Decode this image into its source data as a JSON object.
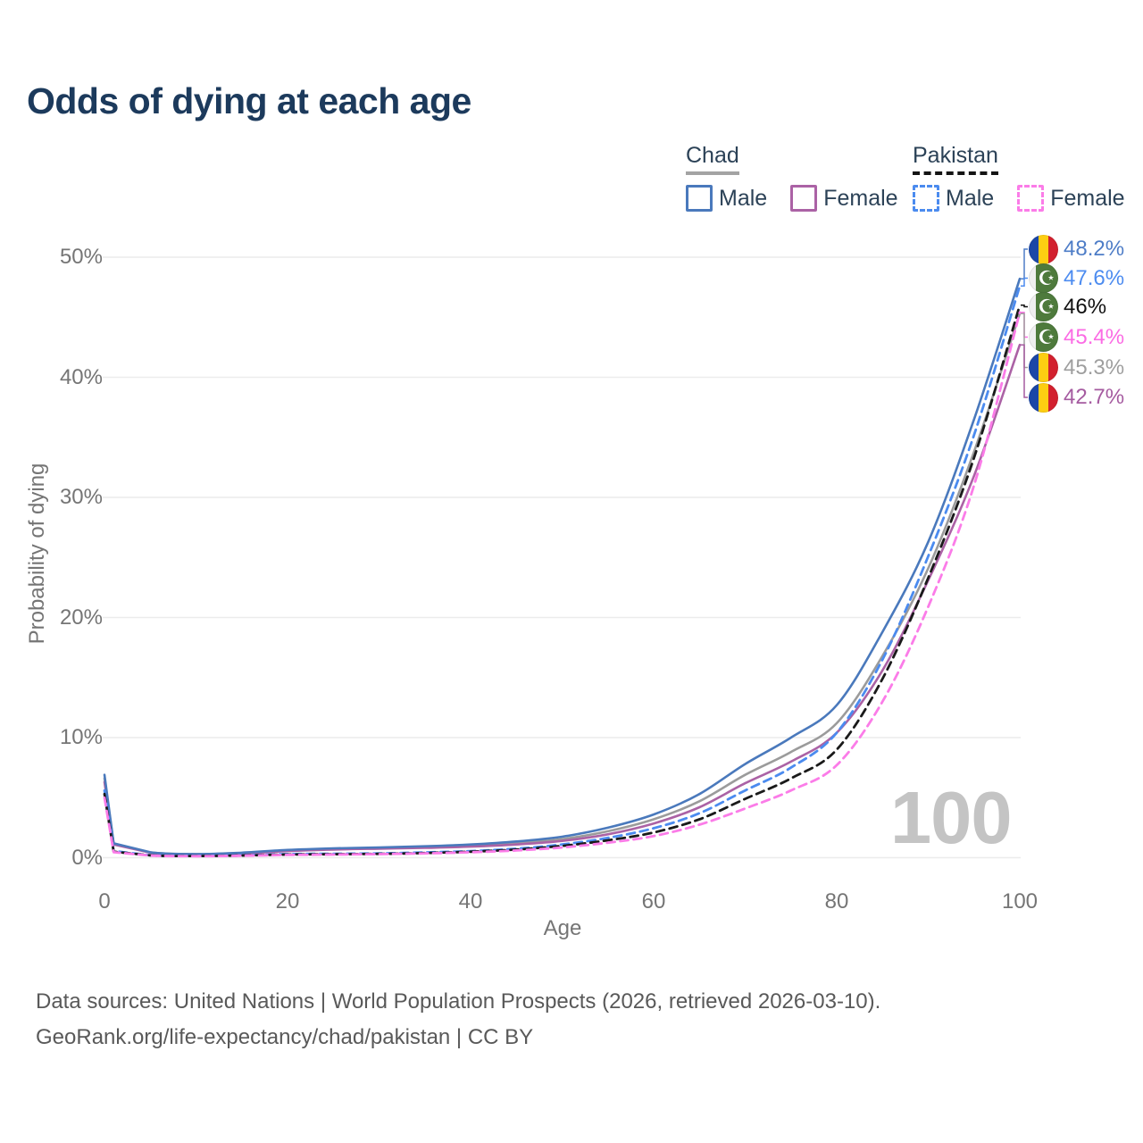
{
  "title": "Odds of dying at each age",
  "watermark": "100",
  "legend": {
    "chad": {
      "label": "Chad",
      "male": "Male",
      "female": "Female"
    },
    "pakistan": {
      "label": "Pakistan",
      "male": "Male",
      "female": "Female"
    }
  },
  "axes": {
    "y_title": "Probability of dying",
    "x_title": "Age",
    "y_tick_labels": [
      "0%",
      "10%",
      "20%",
      "30%",
      "40%",
      "50%"
    ],
    "y_tick_values": [
      0,
      10,
      20,
      30,
      40,
      50
    ],
    "x_tick_labels": [
      "0",
      "20",
      "40",
      "60",
      "80",
      "100"
    ],
    "x_tick_values": [
      0,
      20,
      40,
      60,
      80,
      100
    ]
  },
  "colors": {
    "title": "#1c3a5c",
    "axis_text": "#757575",
    "grid": "#ececec",
    "watermark": "#c4c4c4",
    "chad_male": "#4a79bc",
    "chad_female": "#ab62a5",
    "chad_total": "#9b9b9b",
    "pak_male": "#4b8bef",
    "pak_total": "#1a1a1a",
    "pak_female": "#fb7ce8"
  },
  "end_labels": [
    {
      "series": "chad_male",
      "flag": "chad",
      "text": "48.2%",
      "color": "#4e7dc7"
    },
    {
      "series": "pak_male",
      "flag": "pakistan",
      "text": "47.6%",
      "color": "#4d8cf0"
    },
    {
      "series": "pak_total",
      "flag": "pakistan",
      "text": "46%",
      "color": "#111111"
    },
    {
      "series": "pak_female",
      "flag": "pakistan",
      "text": "45.4%",
      "color": "#fb6ce4"
    },
    {
      "series": "chad_total",
      "flag": "chad",
      "text": "45.3%",
      "color": "#9e9e9e"
    },
    {
      "series": "chad_female",
      "flag": "chad",
      "text": "42.7%",
      "color": "#a55ba0"
    }
  ],
  "footer": {
    "line1": "Data sources: United Nations | World Population Prospects (2026, retrieved 2026-03-10).",
    "line2": "GeoRank.org/life-expectancy/chad/pakistan | CC BY"
  },
  "chart_data": {
    "type": "line",
    "title": "Odds of dying at each age",
    "xlabel": "Age",
    "ylabel": "Probability of dying",
    "x": [
      0,
      1,
      5,
      10,
      15,
      20,
      25,
      30,
      35,
      40,
      45,
      50,
      55,
      60,
      65,
      70,
      75,
      80,
      85,
      90,
      95,
      100
    ],
    "xlim": [
      0,
      100
    ],
    "ylim_percent": [
      0,
      52
    ],
    "grid": "horizontal-only",
    "legend_position": "top-right",
    "series": [
      {
        "key": "chad_total",
        "name": "Chad (both sexes)",
        "style": "solid",
        "color": "#9b9b9b",
        "end_label": "45.3%",
        "values": [
          6.6,
          1.15,
          0.44,
          0.29,
          0.38,
          0.6,
          0.73,
          0.8,
          0.88,
          1.0,
          1.2,
          1.55,
          2.2,
          3.2,
          4.7,
          6.9,
          8.8,
          11.2,
          16.8,
          24.1,
          33.8,
          45.3
        ]
      },
      {
        "key": "chad_female",
        "name": "Chad Female",
        "style": "solid",
        "color": "#ab62a5",
        "end_label": "42.7%",
        "values": [
          6.3,
          1.1,
          0.42,
          0.28,
          0.34,
          0.55,
          0.68,
          0.75,
          0.82,
          0.92,
          1.1,
          1.4,
          1.95,
          2.85,
          4.2,
          6.2,
          8.0,
          10.4,
          15.6,
          23.1,
          31.8,
          42.7
        ]
      },
      {
        "key": "chad_male",
        "name": "Chad Male",
        "style": "solid",
        "color": "#4a79bc",
        "end_label": "48.2%",
        "values": [
          6.9,
          1.2,
          0.45,
          0.3,
          0.42,
          0.65,
          0.78,
          0.85,
          0.95,
          1.1,
          1.35,
          1.75,
          2.5,
          3.6,
          5.3,
          7.8,
          10.0,
          12.7,
          18.8,
          26.3,
          36.5,
          48.2
        ]
      },
      {
        "key": "pak_male",
        "name": "Pakistan Male",
        "style": "dashed",
        "color": "#4b8bef",
        "end_label": "47.6%",
        "values": [
          5.6,
          0.55,
          0.2,
          0.15,
          0.2,
          0.3,
          0.33,
          0.36,
          0.44,
          0.55,
          0.75,
          1.1,
          1.65,
          2.45,
          3.7,
          5.6,
          7.5,
          10.4,
          16.5,
          25.1,
          35.2,
          47.6
        ]
      },
      {
        "key": "pak_total",
        "name": "Pakistan (both sexes)",
        "style": "dashed",
        "color": "#1a1a1a",
        "end_label": "46%",
        "values": [
          5.3,
          0.5,
          0.19,
          0.14,
          0.18,
          0.26,
          0.29,
          0.32,
          0.39,
          0.5,
          0.68,
          0.98,
          1.45,
          2.1,
          3.2,
          4.9,
          6.6,
          9.0,
          14.9,
          23.3,
          33.3,
          46.0
        ]
      },
      {
        "key": "pak_female",
        "name": "Pakistan Female",
        "style": "dashed",
        "color": "#fb7ce8",
        "end_label": "45.4%",
        "values": [
          5.0,
          0.45,
          0.18,
          0.13,
          0.16,
          0.23,
          0.26,
          0.3,
          0.36,
          0.45,
          0.6,
          0.85,
          1.25,
          1.8,
          2.75,
          4.1,
          5.6,
          7.7,
          13.0,
          20.9,
          31.0,
          45.4
        ]
      }
    ]
  }
}
